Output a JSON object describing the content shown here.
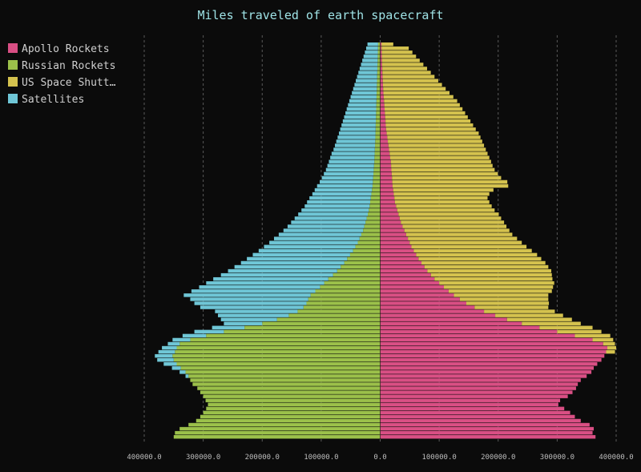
{
  "chart_data": {
    "type": "bar",
    "orientation": "horizontal",
    "layout": "pyramid-stacked",
    "title": "Miles traveled of earth spacecraft",
    "xlim": [
      -400000,
      400000
    ],
    "xticks": [
      -400000,
      -300000,
      -200000,
      -100000,
      0,
      100000,
      200000,
      300000,
      400000
    ],
    "xtick_labels": [
      "400000.0",
      "300000.0",
      "200000.0",
      "100000.0",
      "0.0",
      "100000.0",
      "200000.0",
      "300000.0",
      "400000.0"
    ],
    "grid": "vertical-dashed",
    "legend": "top-left",
    "row_count": 98,
    "series": [
      {
        "name": "Apollo Rockets",
        "side": "right",
        "color": "#d94f84",
        "values": [
          365000,
          360000,
          362000,
          355000,
          340000,
          330000,
          322000,
          312000,
          302000,
          305000,
          318000,
          326000,
          332000,
          335000,
          340000,
          350000,
          358000,
          362000,
          368000,
          375000,
          380000,
          383000,
          385000,
          378000,
          360000,
          330000,
          300000,
          270000,
          240000,
          215000,
          195000,
          176000,
          160000,
          146000,
          135000,
          125000,
          116000,
          108000,
          100000,
          92000,
          86000,
          80000,
          75000,
          70000,
          65000,
          61000,
          57000,
          53000,
          50000,
          47000,
          44000,
          41000,
          38000,
          35000,
          33000,
          31000,
          29000,
          27000,
          25000,
          24000,
          23000,
          22000,
          21000,
          20500,
          20000,
          19500,
          19000,
          18500,
          18000,
          17000,
          16000,
          15000,
          14000,
          13000,
          12000,
          11000,
          10000,
          9500,
          9000,
          8500,
          8000,
          7500,
          7000,
          6500,
          6000,
          5500,
          5000,
          4700,
          4400,
          4100,
          3800,
          3500,
          3200,
          3000,
          2800,
          2600,
          2400,
          2200
        ]
      },
      {
        "name": "Russian Rockets",
        "side": "left",
        "color": "#9bc04a",
        "values": [
          350000,
          348000,
          340000,
          325000,
          312000,
          305000,
          300000,
          295000,
          292000,
          296000,
          300000,
          305000,
          310000,
          318000,
          322000,
          325000,
          330000,
          338000,
          345000,
          350000,
          352000,
          348000,
          345000,
          340000,
          322000,
          295000,
          265000,
          230000,
          200000,
          175000,
          155000,
          140000,
          130000,
          125000,
          122000,
          118000,
          110000,
          102000,
          95000,
          88000,
          80000,
          73000,
          67000,
          61000,
          56000,
          51000,
          46000,
          42000,
          38000,
          35000,
          32000,
          29000,
          27000,
          25000,
          23000,
          21000,
          19500,
          18000,
          17000,
          16000,
          15000,
          14000,
          13000,
          12500,
          12000,
          11500,
          11000,
          10500,
          10000,
          9700,
          9400,
          9100,
          8800,
          8500,
          8200,
          8000,
          7800,
          7600,
          7400,
          7200,
          7000,
          6800,
          6600,
          6400,
          6200,
          6000,
          5800,
          5600,
          5400,
          5200,
          5000,
          4800,
          4600,
          4400,
          4200,
          4000,
          3800,
          3600
        ]
      },
      {
        "name": "US Space Shuttles",
        "side": "right",
        "color": "#d4c24e",
        "values": [
          0,
          0,
          0,
          0,
          0,
          0,
          0,
          0,
          0,
          0,
          0,
          0,
          0,
          0,
          0,
          0,
          0,
          0,
          0,
          0,
          0,
          15000,
          15000,
          20000,
          35000,
          60000,
          75000,
          90000,
          100000,
          110000,
          115000,
          120000,
          125000,
          140000,
          150000,
          160000,
          175000,
          185000,
          195000,
          200000,
          205000,
          210000,
          210000,
          210000,
          208000,
          205000,
          200000,
          195000,
          190000,
          185000,
          180000,
          178000,
          176000,
          175000,
          172000,
          170000,
          165000,
          162000,
          160000,
          158000,
          162000,
          170000,
          196000,
          195000,
          185000,
          180000,
          175000,
          172000,
          170000,
          168000,
          166000,
          164000,
          162000,
          160000,
          158000,
          156000,
          152000,
          148000,
          144000,
          140000,
          136000,
          132000,
          128000,
          124000,
          118000,
          112000,
          106000,
          100000,
          94000,
          88000,
          82000,
          76000,
          70000,
          64000,
          58000,
          52000,
          46000,
          20000
        ]
      },
      {
        "name": "Satellites",
        "side": "left",
        "color": "#6fc6d6",
        "values": [
          0,
          0,
          0,
          0,
          0,
          0,
          0,
          0,
          0,
          0,
          0,
          0,
          0,
          0,
          0,
          5000,
          10000,
          15000,
          22000,
          28000,
          30000,
          28000,
          25000,
          20000,
          30000,
          40000,
          50000,
          55000,
          65000,
          95000,
          120000,
          140000,
          175000,
          190000,
          200000,
          215000,
          210000,
          205000,
          200000,
          195000,
          190000,
          185000,
          180000,
          175000,
          170000,
          165000,
          160000,
          155000,
          150000,
          145000,
          140000,
          135000,
          130000,
          126000,
          122000,
          118000,
          114000,
          110000,
          107000,
          104000,
          100000,
          97000,
          94000,
          90000,
          87000,
          84000,
          81000,
          79000,
          77000,
          75000,
          73000,
          70000,
          68000,
          66000,
          64000,
          62000,
          60000,
          58000,
          56000,
          54000,
          52000,
          50000,
          48000,
          46000,
          44000,
          42000,
          40000,
          38000,
          36000,
          34000,
          32000,
          30000,
          28000,
          26000,
          24000,
          22000,
          20000,
          18000
        ]
      }
    ]
  },
  "legend": {
    "items": [
      {
        "label": "Apollo Rockets",
        "color": "#d94f84"
      },
      {
        "label": "Russian Rockets",
        "color": "#9bc04a"
      },
      {
        "label": "US Space Shutt…",
        "color": "#d4c24e"
      },
      {
        "label": "Satellites",
        "color": "#6fc6d6"
      }
    ]
  }
}
